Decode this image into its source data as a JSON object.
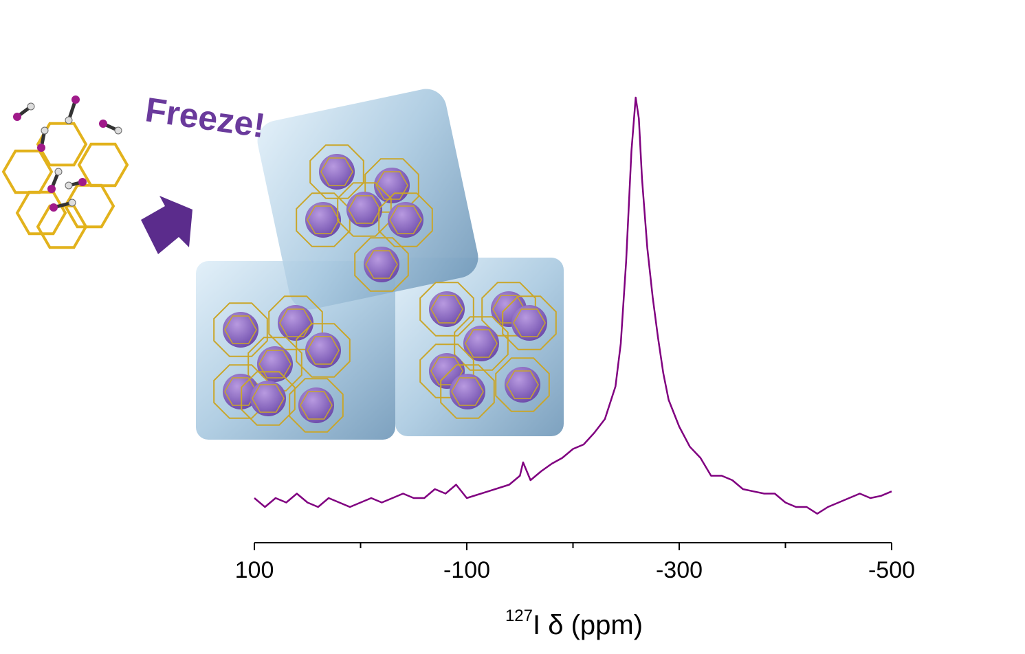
{
  "chart_data": {
    "type": "line",
    "annotation": "Freeze!",
    "xlabel_sup": "127",
    "xlabel": "I δ (ppm)",
    "color": "#800080",
    "x": [
      100,
      90,
      80,
      70,
      60,
      50,
      40,
      30,
      20,
      10,
      0,
      -10,
      -20,
      -30,
      -40,
      -50,
      -60,
      -70,
      -80,
      -90,
      -100,
      -120,
      -140,
      -150,
      -153,
      -160,
      -170,
      -180,
      -190,
      -200,
      -210,
      -220,
      -230,
      -240,
      -245,
      -250,
      -255,
      -259,
      -262,
      -265,
      -270,
      -275,
      -280,
      -285,
      -290,
      -300,
      -310,
      -320,
      -330,
      -340,
      -350,
      -360,
      -370,
      -380,
      -390,
      -400,
      -410,
      -420,
      -430,
      -440,
      -450,
      -460,
      -470,
      -480,
      -490,
      -500
    ],
    "values": [
      10,
      8,
      10,
      9,
      11,
      9,
      8,
      10,
      9,
      8,
      9,
      10,
      9,
      10,
      11,
      10,
      10,
      12,
      11,
      13,
      10,
      11.5,
      13,
      15,
      18,
      14,
      16,
      17.7,
      19,
      21,
      22,
      24.6,
      27.7,
      35,
      44.6,
      63,
      87.7,
      99.7,
      95,
      81.5,
      66,
      55,
      46,
      38,
      32,
      26,
      21.5,
      19,
      15,
      15,
      14,
      12,
      11.5,
      11,
      11,
      9,
      8,
      8,
      6.5,
      8,
      9,
      10,
      11,
      10,
      10.5,
      11.5
    ],
    "xlim": [
      100,
      -500
    ],
    "ylim": [
      0,
      100
    ],
    "xticks": [
      100,
      -100,
      -300,
      -500
    ],
    "xminorticks": [
      0,
      -200,
      -400
    ]
  }
}
